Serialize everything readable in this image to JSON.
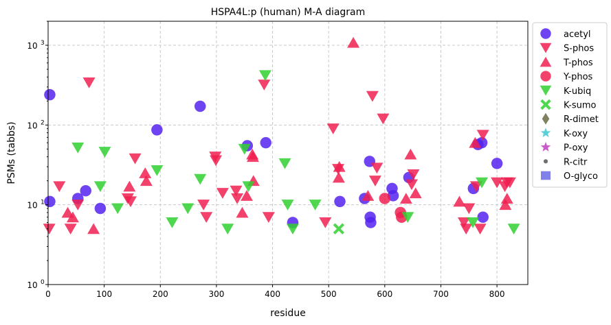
{
  "chart_data": {
    "type": "scatter",
    "title": "HSPA4L:p (human) M-A diagram",
    "xlabel": "residue",
    "ylabel": "PSMs (tabbs)",
    "xlim": [
      0,
      855
    ],
    "ylim": [
      1,
      2000
    ],
    "yscale": "log",
    "grid": true,
    "legend_position": "outside-right",
    "xticks": [
      0,
      100,
      200,
      300,
      400,
      500,
      600,
      700,
      800
    ],
    "xtick_labels": [
      "0",
      "100",
      "200",
      "300",
      "400",
      "500",
      "600",
      "700",
      "800"
    ],
    "yticks": [
      1,
      10,
      100,
      1000
    ],
    "ytick_labels": [
      "10^0",
      "10^1",
      "10^2",
      "10^3"
    ],
    "series": [
      {
        "name": "acetyl",
        "marker": "circle",
        "color": "#5522ee",
        "points": [
          [
            3,
            240
          ],
          [
            3,
            11
          ],
          [
            53,
            12
          ],
          [
            67,
            15
          ],
          [
            93,
            9
          ],
          [
            194,
            87
          ],
          [
            271,
            172
          ],
          [
            355,
            55
          ],
          [
            388,
            60
          ],
          [
            436,
            6
          ],
          [
            520,
            11
          ],
          [
            564,
            12
          ],
          [
            573,
            35
          ],
          [
            574,
            7
          ],
          [
            575,
            6
          ],
          [
            613,
            16
          ],
          [
            615,
            13
          ],
          [
            643,
            22
          ],
          [
            758,
            16
          ],
          [
            766,
            57
          ],
          [
            773,
            60
          ],
          [
            775,
            7
          ],
          [
            800,
            33
          ]
        ]
      },
      {
        "name": "S-phos",
        "marker": "triangle-down",
        "color": "#f02050",
        "points": [
          [
            2,
            5
          ],
          [
            20,
            17
          ],
          [
            40,
            5
          ],
          [
            53,
            10
          ],
          [
            73,
            340
          ],
          [
            142,
            12
          ],
          [
            147,
            11
          ],
          [
            155,
            38
          ],
          [
            277,
            10
          ],
          [
            282,
            7
          ],
          [
            298,
            40
          ],
          [
            299,
            36
          ],
          [
            311,
            14
          ],
          [
            335,
            15
          ],
          [
            337,
            12
          ],
          [
            385,
            320
          ],
          [
            393,
            7
          ],
          [
            494,
            6
          ],
          [
            508,
            90
          ],
          [
            517,
            28
          ],
          [
            578,
            230
          ],
          [
            583,
            20
          ],
          [
            586,
            29
          ],
          [
            597,
            120
          ],
          [
            648,
            18
          ],
          [
            651,
            24
          ],
          [
            741,
            6
          ],
          [
            745,
            5
          ],
          [
            750,
            9
          ],
          [
            763,
            17
          ],
          [
            770,
            5
          ],
          [
            775,
            75
          ],
          [
            800,
            19
          ],
          [
            814,
            17
          ],
          [
            818,
            19
          ],
          [
            823,
            19
          ]
        ]
      },
      {
        "name": "T-phos",
        "marker": "triangle-up",
        "color": "#f02050",
        "points": [
          [
            35,
            8
          ],
          [
            44,
            7
          ],
          [
            81,
            5
          ],
          [
            145,
            17
          ],
          [
            173,
            25
          ],
          [
            175,
            20
          ],
          [
            346,
            8
          ],
          [
            354,
            13
          ],
          [
            364,
            43
          ],
          [
            365,
            40
          ],
          [
            366,
            20
          ],
          [
            518,
            22
          ],
          [
            519,
            30
          ],
          [
            544,
            1080
          ],
          [
            570,
            13
          ],
          [
            638,
            12
          ],
          [
            646,
            43
          ],
          [
            655,
            14
          ],
          [
            733,
            11
          ],
          [
            761,
            60
          ],
          [
            815,
            10
          ],
          [
            818,
            12
          ]
        ]
      },
      {
        "name": "Y-phos",
        "marker": "circle",
        "color": "#f02050",
        "points": [
          [
            600,
            12
          ],
          [
            628,
            8
          ],
          [
            630,
            7
          ]
        ]
      },
      {
        "name": "K-ubiq",
        "marker": "triangle-down",
        "color": "#30d030",
        "points": [
          [
            53,
            52
          ],
          [
            93,
            17
          ],
          [
            101,
            46
          ],
          [
            124,
            9
          ],
          [
            194,
            27
          ],
          [
            221,
            6
          ],
          [
            249,
            9
          ],
          [
            271,
            21
          ],
          [
            320,
            5
          ],
          [
            350,
            50
          ],
          [
            357,
            17
          ],
          [
            387,
            420
          ],
          [
            422,
            33
          ],
          [
            427,
            10
          ],
          [
            436,
            5
          ],
          [
            476,
            10
          ],
          [
            641,
            7
          ],
          [
            757,
            6
          ],
          [
            773,
            19
          ],
          [
            830,
            5
          ]
        ]
      },
      {
        "name": "K-sumo",
        "marker": "x",
        "color": "#30d030",
        "points": [
          [
            518,
            5
          ]
        ]
      },
      {
        "name": "R-dimet",
        "marker": "diamond",
        "color": "#6b6b45",
        "points": []
      },
      {
        "name": "K-oxy",
        "marker": "star",
        "color": "#40c8d0",
        "points": []
      },
      {
        "name": "P-oxy",
        "marker": "star",
        "color": "#c040c0",
        "points": []
      },
      {
        "name": "R-citr",
        "marker": "dot",
        "color": "#555555",
        "points": []
      },
      {
        "name": "O-glyco",
        "marker": "square",
        "color": "#6a6ae8",
        "points": []
      }
    ]
  }
}
